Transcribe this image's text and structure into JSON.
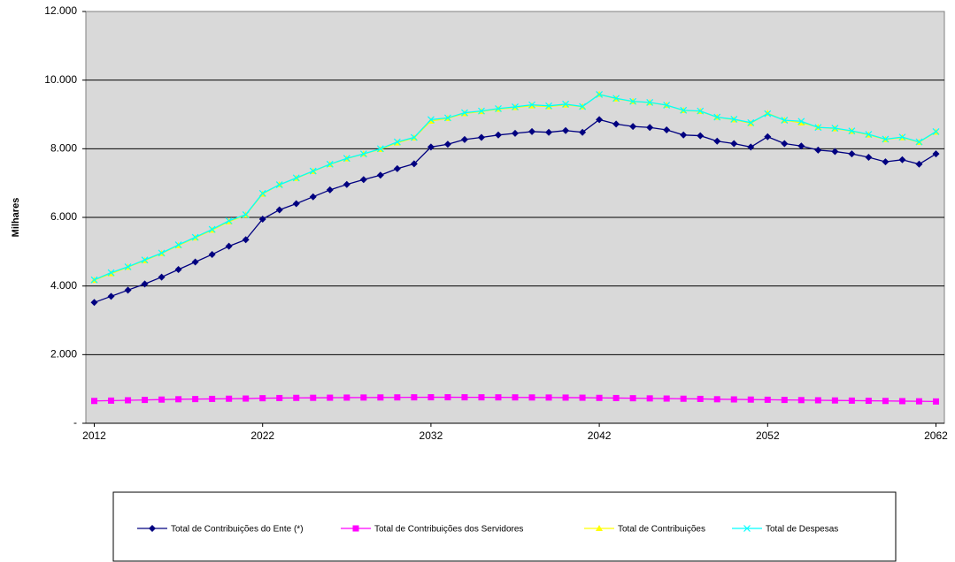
{
  "chart_data": {
    "type": "line",
    "y_label": "Milhares",
    "x": [
      2012,
      2013,
      2014,
      2015,
      2016,
      2017,
      2018,
      2019,
      2020,
      2021,
      2022,
      2023,
      2024,
      2025,
      2026,
      2027,
      2028,
      2029,
      2030,
      2031,
      2032,
      2033,
      2034,
      2035,
      2036,
      2037,
      2038,
      2039,
      2040,
      2041,
      2042,
      2043,
      2044,
      2045,
      2046,
      2047,
      2048,
      2049,
      2050,
      2051,
      2052,
      2053,
      2054,
      2055,
      2056,
      2057,
      2058,
      2059,
      2060,
      2061,
      2062
    ],
    "xlim": [
      2011.5,
      2062.5
    ],
    "xticks": [
      2012,
      2022,
      2032,
      2042,
      2052,
      2062
    ],
    "ylim": [
      0,
      12000
    ],
    "yticks": [
      {
        "value": 0,
        "label": "-"
      },
      {
        "value": 2000,
        "label": "2.000"
      },
      {
        "value": 4000,
        "label": "4.000"
      },
      {
        "value": 6000,
        "label": "6.000"
      },
      {
        "value": 8000,
        "label": "8.000"
      },
      {
        "value": 10000,
        "label": "10.000"
      },
      {
        "value": 12000,
        "label": "12.000"
      }
    ],
    "grid": true,
    "legend": "bottom",
    "series": [
      {
        "name": "Total de Contribuições do Ente (*)",
        "color": "#000080",
        "marker": "diamond",
        "values": [
          3520,
          3700,
          3880,
          4060,
          4260,
          4480,
          4700,
          4920,
          5160,
          5350,
          5950,
          6220,
          6400,
          6600,
          6800,
          6960,
          7100,
          7230,
          7420,
          7560,
          8050,
          8130,
          8270,
          8330,
          8400,
          8450,
          8500,
          8480,
          8530,
          8480,
          8850,
          8720,
          8650,
          8620,
          8550,
          8400,
          8380,
          8220,
          8150,
          8050,
          8350,
          8150,
          8080,
          7960,
          7920,
          7850,
          7750,
          7620,
          7680,
          7550,
          7850
        ]
      },
      {
        "name": "Total de Contribuições dos Servidores",
        "color": "#FF00FF",
        "marker": "square",
        "values": [
          650,
          660,
          670,
          680,
          690,
          700,
          705,
          710,
          715,
          720,
          730,
          735,
          740,
          742,
          745,
          748,
          750,
          752,
          754,
          756,
          758,
          758,
          757,
          756,
          755,
          754,
          752,
          750,
          748,
          745,
          740,
          735,
          730,
          725,
          720,
          715,
          710,
          700,
          695,
          690,
          685,
          680,
          675,
          670,
          665,
          660,
          655,
          650,
          645,
          640,
          635
        ]
      },
      {
        "name": "Total de Contribuições",
        "color": "#FFFF00",
        "marker": "triangle",
        "values": [
          4170,
          4360,
          4550,
          4740,
          4950,
          5180,
          5405,
          5630,
          5875,
          6070,
          6680,
          6955,
          7140,
          7342,
          7545,
          7708,
          7850,
          7982,
          8174,
          8316,
          8808,
          8888,
          9027,
          9086,
          9155,
          9204,
          9252,
          9230,
          9278,
          9225,
          9590,
          9455,
          9380,
          9345,
          9270,
          9115,
          9090,
          8920,
          8845,
          8740,
          9035,
          8830,
          8755,
          8630,
          8585,
          8510,
          8405,
          8270,
          8325,
          8190,
          8485
        ]
      },
      {
        "name": "Total de Despesas",
        "color": "#00FFFF",
        "marker": "x",
        "values": [
          4180,
          4390,
          4560,
          4760,
          4960,
          5200,
          5420,
          5650,
          5900,
          6080,
          6700,
          6950,
          7150,
          7350,
          7550,
          7720,
          7850,
          8000,
          8200,
          8330,
          8850,
          8900,
          9050,
          9100,
          9170,
          9220,
          9280,
          9250,
          9300,
          9230,
          9580,
          9470,
          9380,
          9350,
          9270,
          9120,
          9100,
          8920,
          8860,
          8760,
          9020,
          8830,
          8800,
          8620,
          8600,
          8520,
          8420,
          8280,
          8340,
          8200,
          8500
        ]
      }
    ]
  }
}
